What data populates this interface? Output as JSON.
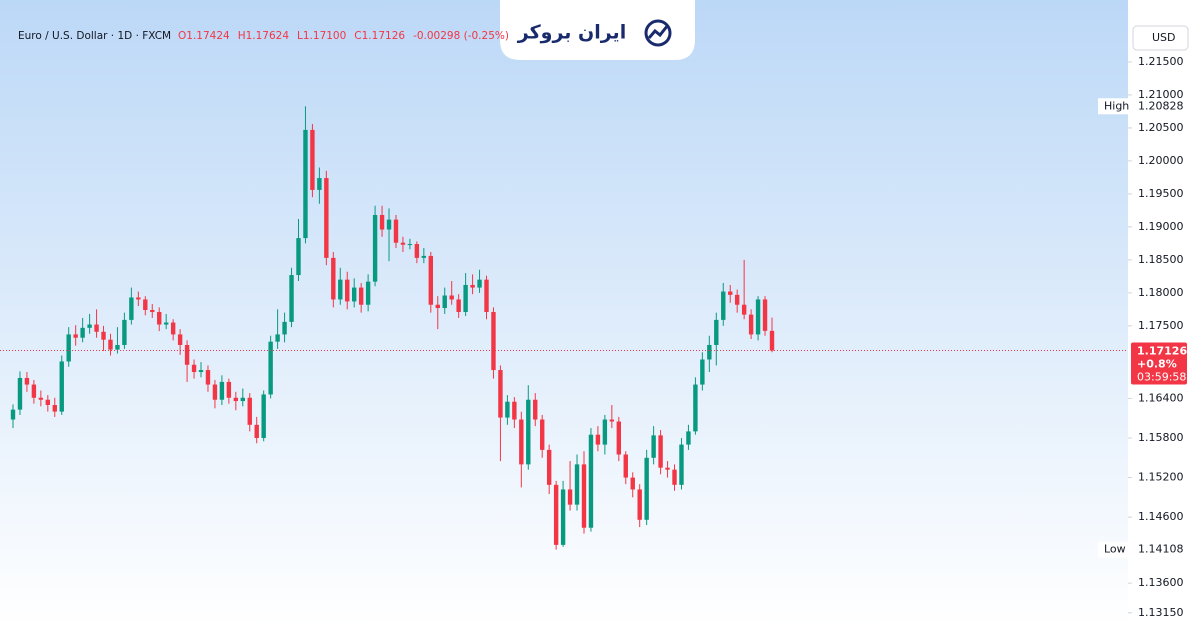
{
  "chart_data": {
    "type": "candlestick",
    "title": "Euro / U.S. Dollar · 1D · FXCM",
    "header_values": [
      "O1.17424",
      "H1.17624",
      "L1.17100",
      "C1.17126",
      "-0.00298 (-0.25%)"
    ],
    "logo": "ایران بروکر",
    "currency": "USD",
    "up_color": "#089981",
    "down_color": "#f23645",
    "ylim": [
      1.1292,
      1.2206
    ],
    "yticks": [
      {
        "value": 1.215,
        "label": "1.21500"
      },
      {
        "value": 1.21,
        "label": "1.21000"
      },
      {
        "value": 1.205,
        "label": "1.20500"
      },
      {
        "value": 1.2,
        "label": "1.20000"
      },
      {
        "value": 1.195,
        "label": "1.19500"
      },
      {
        "value": 1.19,
        "label": "1.19000"
      },
      {
        "value": 1.185,
        "label": "1.18500"
      },
      {
        "value": 1.18,
        "label": "1.18000"
      },
      {
        "value": 1.175,
        "label": "1.17500"
      },
      {
        "value": 1.164,
        "label": "1.16400"
      },
      {
        "value": 1.158,
        "label": "1.15800"
      },
      {
        "value": 1.152,
        "label": "1.15200"
      },
      {
        "value": 1.146,
        "label": "1.14600"
      },
      {
        "value": 1.136,
        "label": "1.13600"
      },
      {
        "value": 1.1315,
        "label": "1.13150"
      }
    ],
    "high_marker": {
      "text": "High",
      "value": 1.20828
    },
    "low_marker": {
      "text": "Low",
      "value": 1.14108
    },
    "last_price": 1.17126,
    "change_label": "+0.8%",
    "countdown": "03:59:58",
    "open": [
      1.1608,
      1.1623,
      1.1671,
      1.1661,
      1.1641,
      1.1638,
      1.163,
      1.162,
      1.1696,
      1.1737,
      1.1732,
      1.1747,
      1.1752,
      1.1741,
      1.1729,
      1.1714,
      1.1721,
      1.1759,
      1.1793,
      1.179,
      1.1774,
      1.1771,
      1.1752,
      1.1755,
      1.1737,
      1.1721,
      1.1691,
      1.168,
      1.1683,
      1.1661,
      1.1638,
      1.1665,
      1.1641,
      1.1636,
      1.1641,
      1.16,
      1.158,
      1.1646,
      1.1726,
      1.1737,
      1.1756,
      1.1827,
      1.1883,
      1.2047,
      1.1956,
      1.1974,
      1.1853,
      1.179,
      1.182,
      1.1787,
      1.1808,
      1.1782,
      1.1817,
      1.1918,
      1.1896,
      1.1911,
      1.1876,
      1.1873,
      1.1874,
      1.1853,
      1.1856,
      1.1782,
      1.1777,
      1.1796,
      1.179,
      1.1771,
      1.1812,
      1.1808,
      1.182,
      1.1771,
      1.1683,
      1.1611,
      1.1635,
      1.1608,
      1.154,
      1.1638,
      1.1608,
      1.1562,
      1.1509,
      1.1418,
      1.1502,
      1.1479,
      1.154,
      1.1444,
      1.1585,
      1.157,
      1.1608,
      1.1605,
      1.1555,
      1.152,
      1.1502,
      1.1456,
      1.155,
      1.1584,
      1.1535,
      1.1532,
      1.1509,
      1.157,
      1.159,
      1.1661,
      1.1699,
      1.1721,
      1.1759,
      1.1802,
      1.1797,
      1.1782,
      1.1767,
      1.1737,
      1.179,
      1.17424
    ],
    "high": [
      1.1631,
      1.1681,
      1.168,
      1.1668,
      1.1652,
      1.1645,
      1.1641,
      1.1705,
      1.1748,
      1.1751,
      1.1762,
      1.1768,
      1.1775,
      1.175,
      1.1738,
      1.1748,
      1.177,
      1.1808,
      1.1802,
      1.1795,
      1.1783,
      1.1778,
      1.1768,
      1.176,
      1.1745,
      1.1728,
      1.1699,
      1.1695,
      1.169,
      1.1668,
      1.1675,
      1.167,
      1.165,
      1.1655,
      1.1648,
      1.1612,
      1.1652,
      1.1735,
      1.1775,
      1.177,
      1.1838,
      1.1912,
      1.20828,
      1.2056,
      1.199,
      1.1985,
      1.1862,
      1.1838,
      1.1832,
      1.1822,
      1.1815,
      1.1828,
      1.1932,
      1.1932,
      1.1928,
      1.1918,
      1.1885,
      1.1882,
      1.1878,
      1.1868,
      1.1862,
      1.1795,
      1.1808,
      1.1818,
      1.1798,
      1.183,
      1.1828,
      1.1835,
      1.1826,
      1.1778,
      1.169,
      1.1645,
      1.1642,
      1.162,
      1.166,
      1.1648,
      1.1615,
      1.157,
      1.1515,
      1.1515,
      1.1545,
      1.1555,
      1.156,
      1.1595,
      1.1598,
      1.1615,
      1.163,
      1.1612,
      1.156,
      1.1528,
      1.151,
      1.1562,
      1.1598,
      1.1592,
      1.1545,
      1.154,
      1.158,
      1.16,
      1.1672,
      1.171,
      1.1735,
      1.177,
      1.1815,
      1.1812,
      1.1805,
      1.185,
      1.1775,
      1.1795,
      1.1795,
      1.17624
    ],
    "low": [
      1.1595,
      1.1615,
      1.165,
      1.1632,
      1.1628,
      1.162,
      1.1612,
      1.1615,
      1.1688,
      1.172,
      1.1725,
      1.1738,
      1.1732,
      1.1712,
      1.1705,
      1.1708,
      1.1715,
      1.1752,
      1.178,
      1.1766,
      1.1762,
      1.1742,
      1.1745,
      1.1728,
      1.1706,
      1.1665,
      1.167,
      1.1672,
      1.165,
      1.1625,
      1.163,
      1.1632,
      1.1622,
      1.1628,
      1.159,
      1.1572,
      1.1575,
      1.164,
      1.1715,
      1.1725,
      1.1748,
      1.1818,
      1.1875,
      1.1945,
      1.1935,
      1.1842,
      1.1778,
      1.1782,
      1.1775,
      1.1778,
      1.177,
      1.1772,
      1.181,
      1.1885,
      1.1848,
      1.1868,
      1.1862,
      1.1866,
      1.1845,
      1.1845,
      1.177,
      1.1745,
      1.1768,
      1.1782,
      1.1762,
      1.1765,
      1.1798,
      1.18,
      1.176,
      1.167,
      1.1545,
      1.16,
      1.1595,
      1.1505,
      1.1532,
      1.1598,
      1.155,
      1.1495,
      1.14108,
      1.1415,
      1.147,
      1.147,
      1.1435,
      1.1438,
      1.156,
      1.1555,
      1.1595,
      1.1545,
      1.151,
      1.149,
      1.1445,
      1.1448,
      1.154,
      1.1525,
      1.152,
      1.15,
      1.1502,
      1.1562,
      1.1585,
      1.1652,
      1.168,
      1.169,
      1.175,
      1.1785,
      1.177,
      1.176,
      1.173,
      1.1728,
      1.1735,
      1.171
    ],
    "close": [
      1.1623,
      1.1671,
      1.1661,
      1.1641,
      1.1638,
      1.163,
      1.162,
      1.1696,
      1.1737,
      1.1732,
      1.1747,
      1.1752,
      1.1741,
      1.1729,
      1.1714,
      1.1721,
      1.1759,
      1.1793,
      1.179,
      1.1774,
      1.1771,
      1.1752,
      1.1755,
      1.1737,
      1.1721,
      1.1691,
      1.168,
      1.1683,
      1.1661,
      1.1638,
      1.1665,
      1.1641,
      1.1636,
      1.1641,
      1.16,
      1.158,
      1.1646,
      1.1726,
      1.1737,
      1.1756,
      1.1827,
      1.1883,
      1.2047,
      1.1956,
      1.1974,
      1.1853,
      1.179,
      1.182,
      1.1787,
      1.1808,
      1.1782,
      1.1817,
      1.1918,
      1.1896,
      1.1911,
      1.1876,
      1.1873,
      1.1874,
      1.1853,
      1.1856,
      1.1782,
      1.1777,
      1.1796,
      1.179,
      1.1771,
      1.1812,
      1.1808,
      1.182,
      1.1771,
      1.1683,
      1.1611,
      1.1635,
      1.1608,
      1.154,
      1.1638,
      1.1608,
      1.1562,
      1.1509,
      1.1418,
      1.1502,
      1.1479,
      1.154,
      1.1444,
      1.1585,
      1.157,
      1.1608,
      1.1605,
      1.1555,
      1.152,
      1.1502,
      1.1456,
      1.155,
      1.1584,
      1.1535,
      1.1532,
      1.1509,
      1.157,
      1.159,
      1.1661,
      1.1699,
      1.1721,
      1.1759,
      1.1802,
      1.1797,
      1.1782,
      1.1767,
      1.1737,
      1.179,
      1.17424,
      1.17126
    ]
  }
}
